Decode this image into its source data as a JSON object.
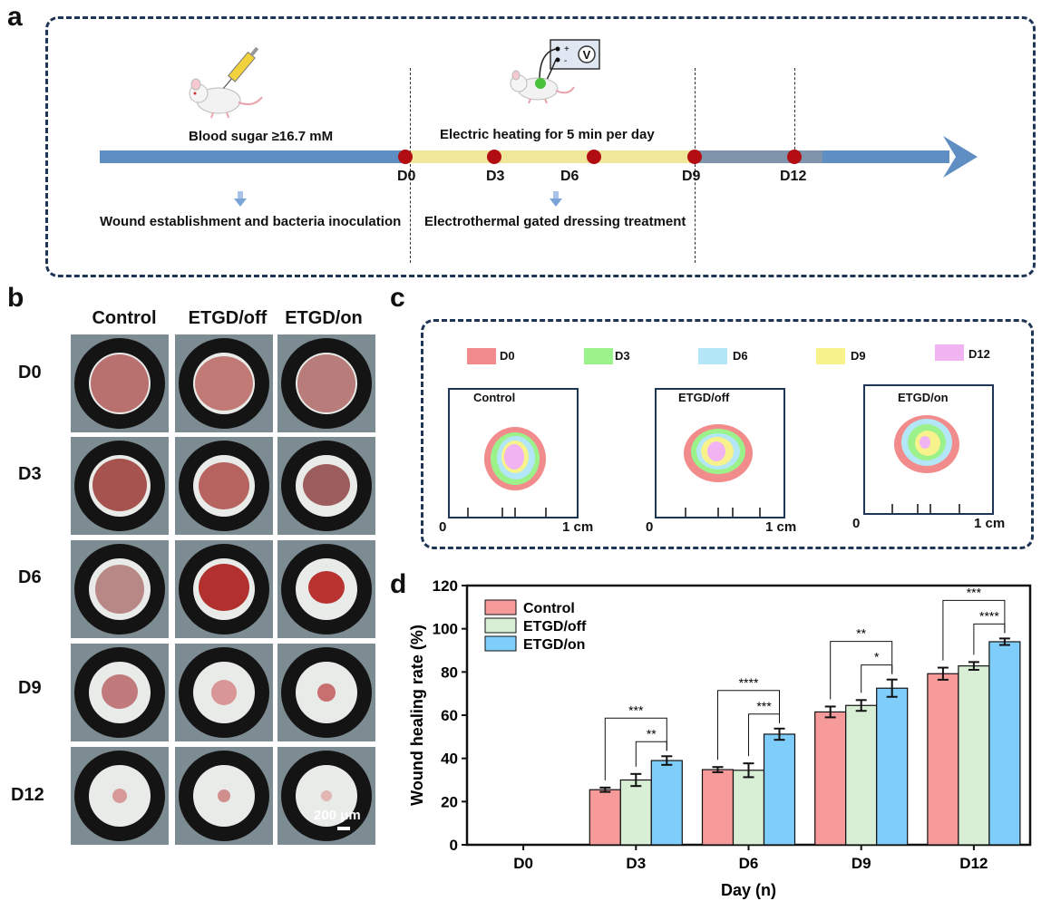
{
  "panels": {
    "a": "a",
    "b": "b",
    "c": "c",
    "d": "d"
  },
  "timeline": {
    "blood_sugar": "Blood sugar ≥16.7 mM",
    "heating": "Electric heating for  5 min per day",
    "wound_step": "Wound establishment and bacteria inoculation",
    "treatment_step": "Electrothermal gated dressing treatment",
    "days": [
      "D0",
      "D3",
      "D6",
      "D9",
      "D12"
    ],
    "voltmeter_symbol": "V",
    "plus": "+",
    "minus": "-"
  },
  "photo_grid": {
    "columns": [
      "Control",
      "ETGD/off",
      "ETGD/on"
    ],
    "rows": [
      "D0",
      "D3",
      "D6",
      "D9",
      "D12"
    ],
    "scale_bar": "200 μm"
  },
  "traces": {
    "legend": [
      {
        "label": "D0",
        "color": "#f28b8b"
      },
      {
        "label": "D3",
        "color": "#9bf28b"
      },
      {
        "label": "D6",
        "color": "#b3e6f7"
      },
      {
        "label": "D9",
        "color": "#f7f28b"
      },
      {
        "label": "D12",
        "color": "#f2b3f2"
      }
    ],
    "maps": [
      "Control",
      "ETGD/off",
      "ETGD/on"
    ],
    "axis_start": "0",
    "axis_end": "1 cm"
  },
  "chart_data": {
    "type": "bar",
    "title": "",
    "xlabel": "Day (n)",
    "ylabel": "Wound healing rate (%)",
    "ylim": [
      0,
      120
    ],
    "yticks": [
      0,
      20,
      40,
      60,
      80,
      100,
      120
    ],
    "categories": [
      "D0",
      "D3",
      "D6",
      "D9",
      "D12"
    ],
    "series": [
      {
        "name": "Control",
        "color": "#f79a9a",
        "values": [
          null,
          25.5,
          34.8,
          61.5,
          79.2
        ],
        "errors": [
          null,
          1.0,
          1.2,
          2.5,
          2.8
        ]
      },
      {
        "name": "ETGD/off",
        "color": "#d8efd6",
        "values": [
          null,
          30.0,
          34.5,
          64.5,
          82.8
        ],
        "errors": [
          null,
          2.8,
          3.2,
          2.5,
          1.8
        ]
      },
      {
        "name": "ETGD/on",
        "color": "#7fcdfb",
        "values": [
          null,
          39.0,
          51.2,
          72.5,
          94.0
        ],
        "errors": [
          null,
          2.0,
          2.6,
          4.0,
          1.5
        ]
      }
    ],
    "significance": [
      {
        "category": "D3",
        "from": 0,
        "to": 2,
        "label": "***"
      },
      {
        "category": "D3",
        "from": 1,
        "to": 2,
        "label": "**"
      },
      {
        "category": "D6",
        "from": 0,
        "to": 2,
        "label": "****"
      },
      {
        "category": "D6",
        "from": 1,
        "to": 2,
        "label": "***"
      },
      {
        "category": "D9",
        "from": 0,
        "to": 2,
        "label": "**"
      },
      {
        "category": "D9",
        "from": 1,
        "to": 2,
        "label": "*"
      },
      {
        "category": "D12",
        "from": 0,
        "to": 2,
        "label": "***"
      },
      {
        "category": "D12",
        "from": 1,
        "to": 2,
        "label": "****"
      }
    ]
  }
}
